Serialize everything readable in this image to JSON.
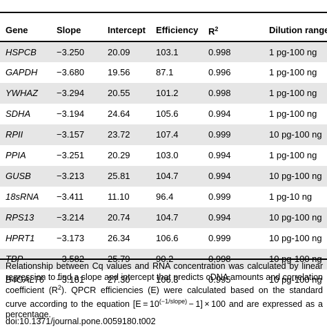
{
  "table": {
    "columns": [
      "Gene",
      "Slope",
      "Intercept",
      "Efficiency",
      "R",
      "Dilution range"
    ],
    "r_superscript": "2",
    "rows": [
      {
        "gene": "HSPCB",
        "slope": "−3.250",
        "intercept": "20.09",
        "efficiency": "103.1",
        "r2": "0.998",
        "range": "1 pg-100 ng"
      },
      {
        "gene": "GAPDH",
        "slope": "−3.680",
        "intercept": "19.56",
        "efficiency": "87.1",
        "r2": "0.996",
        "range": "1 pg-100 ng"
      },
      {
        "gene": "YWHAZ",
        "slope": "−3.294",
        "intercept": "20.55",
        "efficiency": "101.2",
        "r2": "0.998",
        "range": "1 pg-100 ng"
      },
      {
        "gene": "SDHA",
        "slope": "−3.194",
        "intercept": "24.64",
        "efficiency": "105.6",
        "r2": "0.994",
        "range": "1 pg-100 ng"
      },
      {
        "gene": "RPII",
        "slope": "−3.157",
        "intercept": "23.72",
        "efficiency": "107.4",
        "r2": "0.999",
        "range": "10 pg-100 ng"
      },
      {
        "gene": "PPIA",
        "slope": "−3.251",
        "intercept": "20.29",
        "efficiency": "103.0",
        "r2": "0.994",
        "range": "1 pg-100 ng"
      },
      {
        "gene": "GUSB",
        "slope": "−3.213",
        "intercept": "25.81",
        "efficiency": "104.7",
        "r2": "0.994",
        "range": "10 pg-100 ng"
      },
      {
        "gene": "18sRNA",
        "slope": "−3.411",
        "intercept": "11.10",
        "efficiency": "96.4",
        "r2": "0.999",
        "range": "1 pg-10 ng"
      },
      {
        "gene": "RPS13",
        "slope": "−3.214",
        "intercept": "20.74",
        "efficiency": "104.7",
        "r2": "0.994",
        "range": "10 pg-100 ng"
      },
      {
        "gene": "HPRT1",
        "slope": "−3.173",
        "intercept": "26.34",
        "efficiency": "106.6",
        "r2": "0.999",
        "range": "10 pg-100 ng"
      },
      {
        "gene": "TBP",
        "slope": "−3.582",
        "intercept": "25.79",
        "efficiency": "90.2",
        "r2": "0.998",
        "range": "10 pg-100 ng"
      },
      {
        "gene": "B4GALT6",
        "slope": "−3.181",
        "intercept": "27.30",
        "efficiency": "106.3",
        "r2": "0.995",
        "range": "10 pg-100 ng"
      }
    ]
  },
  "footnote": {
    "part1": "Relationship between Cq values and RNA concentration was calculated by linear regression to find a slope and intercept that predicts cDNA amounts and correlation coefficient (R",
    "r_sup": "2",
    "part2": "). QPCR efficiencies (E) were calculated based on the standard curve according to the equation ",
    "formula_lead": "[E = 10",
    "formula_exp": "(−1/slope)",
    "formula_tail": " − 1] × 100",
    "part3": " and are expressed as a percentage."
  },
  "doi": "doi:10.1371/journal.pone.0059180.t002"
}
